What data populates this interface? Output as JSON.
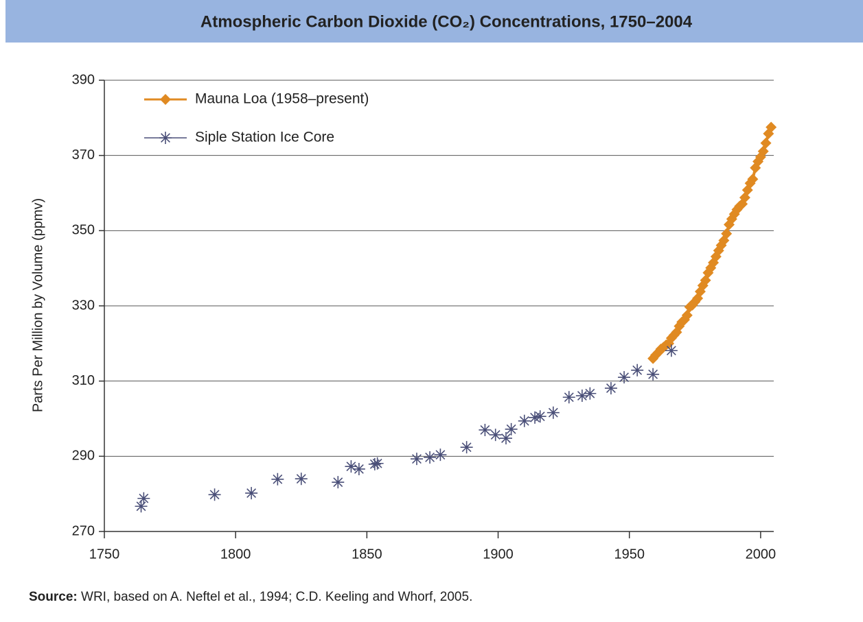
{
  "chart_data": {
    "type": "line",
    "title": "Atmospheric Carbon Dioxide (CO₂) Concentrations, 1750–2004",
    "y_label": "Parts Per Million by Volume (ppmv)",
    "source": {
      "label": "Source:",
      "text": "WRI, based on A. Neftel et al., 1994; C.D. Keeling and Whorf, 2005."
    },
    "xlim": [
      1750,
      2005
    ],
    "xticks": [
      1750,
      1800,
      1850,
      1900,
      1950,
      2000
    ],
    "ylim": [
      270,
      390
    ],
    "yticks": [
      270,
      290,
      310,
      330,
      350,
      370,
      390
    ],
    "grid": true,
    "legend": "top-left",
    "series": [
      {
        "name": "Mauna Loa (1958–present)",
        "color": "#e08a22",
        "marker": "diamond",
        "line": true,
        "x": [
          1959,
          1960,
          1961,
          1962,
          1963,
          1964,
          1965,
          1966,
          1967,
          1968,
          1969,
          1970,
          1971,
          1972,
          1973,
          1974,
          1975,
          1976,
          1977,
          1978,
          1979,
          1980,
          1981,
          1982,
          1983,
          1984,
          1985,
          1986,
          1987,
          1988,
          1989,
          1990,
          1991,
          1992,
          1993,
          1994,
          1995,
          1996,
          1997,
          1998,
          1999,
          2000,
          2001,
          2002,
          2003,
          2004
        ],
        "values": [
          316.0,
          316.9,
          317.6,
          318.5,
          319.0,
          319.6,
          320.0,
          321.4,
          322.2,
          323.0,
          324.6,
          325.7,
          326.3,
          327.5,
          329.7,
          330.2,
          331.1,
          332.0,
          333.8,
          335.4,
          336.8,
          338.8,
          340.1,
          341.5,
          343.1,
          344.7,
          346.1,
          347.4,
          349.2,
          351.6,
          353.1,
          354.4,
          355.6,
          356.5,
          357.1,
          358.8,
          360.8,
          362.6,
          363.7,
          366.7,
          368.4,
          369.6,
          371.1,
          373.3,
          375.8,
          377.5
        ]
      },
      {
        "name": "Siple Station Ice Core",
        "color": "#4a4f78",
        "marker": "star",
        "line": false,
        "x": [
          1764,
          1765,
          1792,
          1806,
          1816,
          1825,
          1839,
          1844,
          1847,
          1853,
          1854,
          1869,
          1874,
          1878,
          1888,
          1895,
          1899,
          1903,
          1905,
          1910,
          1914,
          1916,
          1921,
          1927,
          1932,
          1935,
          1943,
          1948,
          1953,
          1959,
          1966
        ],
        "values": [
          276.7,
          278.8,
          279.8,
          280.2,
          283.9,
          284.0,
          283.1,
          287.3,
          286.6,
          287.9,
          288.1,
          289.3,
          289.7,
          290.4,
          292.4,
          297.0,
          295.7,
          294.8,
          297.2,
          299.4,
          300.3,
          300.6,
          301.6,
          305.7,
          306.1,
          306.7,
          308.1,
          311.0,
          312.9,
          311.8,
          318.1
        ]
      }
    ]
  }
}
